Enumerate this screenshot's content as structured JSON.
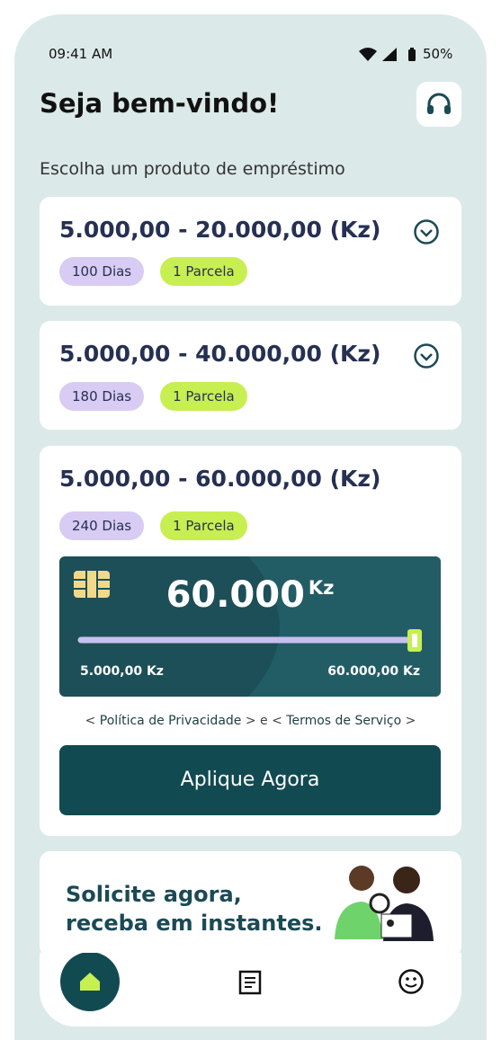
{
  "status_bar": {
    "time": "09:41 AM",
    "battery": "50%"
  },
  "header": {
    "title": "Seja bem-vindo!"
  },
  "section_title": "Escolha um produto de empréstimo",
  "products": [
    {
      "range": "5.000,00 - 20.000,00 (Kz)",
      "tags": [
        "100 Dias",
        "1 Parcela"
      ]
    },
    {
      "range": "5.000,00 - 40.000,00 (Kz)",
      "tags": [
        "180 Dias",
        "1 Parcela"
      ]
    },
    {
      "range": "5.000,00 - 60.000,00 (Kz)",
      "tags": [
        "240 Dias",
        "1 Parcela"
      ]
    }
  ],
  "loan_card": {
    "amount": "60.000",
    "currency": "Kz",
    "min_label": "5.000,00 Kz",
    "max_label": "60.000,00 Kz"
  },
  "legal": {
    "prefix": "<",
    "privacy": "Política de Privacidade",
    "middle": "> e <",
    "terms": "Termos de Serviço",
    "suffix": ">"
  },
  "button": "Aplique Agora",
  "banner": {
    "line1": "Solicite agora,",
    "line2": "receba em instantes."
  }
}
